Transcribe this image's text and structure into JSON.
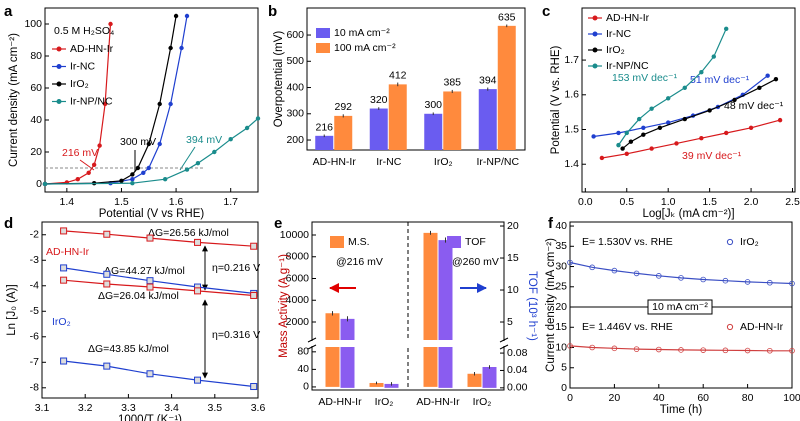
{
  "chart_data": [
    {
      "panel": "a",
      "type": "line",
      "x_label": "Potential (V vs RHE)",
      "y_label": "Current density (mA cm⁻²)",
      "xlim": [
        1.36,
        1.75
      ],
      "xticks": [
        1.4,
        1.5,
        1.6,
        1.7
      ],
      "ylim": [
        -5,
        110
      ],
      "yticks": [
        0,
        20,
        40,
        60,
        80,
        100
      ],
      "marker": "circle",
      "legend": "upper left",
      "reference_y": 10,
      "annotations": [
        "0.5 M H₂SO₄",
        "216 mV",
        "300 mV",
        "394 mV"
      ],
      "series": [
        {
          "name": "AD-HN-Ir",
          "color": "#d7191c",
          "x": [
            1.36,
            1.4,
            1.42,
            1.44,
            1.45,
            1.46,
            1.47,
            1.48
          ],
          "values": [
            0,
            1,
            3,
            7,
            12,
            24,
            50,
            100
          ]
        },
        {
          "name": "Ir-NC",
          "color": "#1f3fcf",
          "x": [
            1.36,
            1.48,
            1.52,
            1.54,
            1.55,
            1.57,
            1.59,
            1.61,
            1.62
          ],
          "values": [
            0,
            0.5,
            3,
            7,
            10,
            25,
            50,
            85,
            105
          ]
        },
        {
          "name": "IrO₂",
          "color": "#000000",
          "x": [
            1.36,
            1.45,
            1.5,
            1.52,
            1.53,
            1.55,
            1.57,
            1.59,
            1.6
          ],
          "values": [
            0,
            0.5,
            2,
            6,
            10,
            25,
            50,
            85,
            105
          ]
        },
        {
          "name": "Ir-NP/NC",
          "color": "#1a8c8c",
          "x": [
            1.36,
            1.52,
            1.58,
            1.62,
            1.64,
            1.67,
            1.7,
            1.73,
            1.75
          ],
          "values": [
            0,
            0.5,
            3,
            9,
            13,
            20,
            28,
            35,
            41
          ]
        }
      ]
    },
    {
      "panel": "b",
      "type": "bar",
      "y_label": "Overpotential (mV)",
      "categories": [
        "AD-HN-Ir",
        "Ir-NC",
        "IrO₂",
        "Ir-NP/NC"
      ],
      "ylim": [
        162,
        703
      ],
      "yticks": [
        200,
        300,
        400,
        500,
        600
      ],
      "legend": "upper left",
      "series": [
        {
          "name": "10 mA cm⁻²",
          "color": "#6a5cf0",
          "values": [
            216,
            320,
            300,
            394
          ],
          "errors": [
            5,
            5,
            5,
            6
          ]
        },
        {
          "name": "100 mA cm⁻²",
          "color": "#ff8a3d",
          "values": [
            292,
            412,
            385,
            635
          ],
          "errors": [
            6,
            7,
            6,
            5
          ]
        }
      ]
    },
    {
      "panel": "c",
      "type": "line",
      "x_label": "Log[Jₖ (mA cm⁻²)]",
      "y_label": "Potential (V vs. RHE)",
      "xlim": [
        -0.04,
        2.53
      ],
      "xticks": [
        {
          "value": 0,
          "label": "0.0"
        },
        0.5,
        {
          "value": 1,
          "label": "1.0"
        },
        1.5,
        {
          "value": 2,
          "label": "2.0"
        },
        2.5
      ],
      "ylim": [
        1.32,
        1.85
      ],
      "yticks": [
        1.4,
        1.5,
        1.6,
        1.7
      ],
      "marker": "circle",
      "legend": "upper left",
      "annotations": [
        "153 mV dec⁻¹",
        "51 mV dec⁻¹",
        "48 mV dec⁻¹",
        "39 mV dec⁻¹"
      ],
      "series": [
        {
          "name": "AD-HN-Ir",
          "color": "#d7191c",
          "x": [
            0.2,
            0.5,
            0.8,
            1.1,
            1.4,
            1.7,
            2.0,
            2.35
          ],
          "values": [
            1.418,
            1.43,
            1.445,
            1.46,
            1.475,
            1.49,
            1.505,
            1.527
          ]
        },
        {
          "name": "Ir-NC",
          "color": "#1f3fcf",
          "x": [
            0.1,
            0.4,
            0.7,
            1.0,
            1.3,
            1.6,
            1.9,
            2.2
          ],
          "values": [
            1.48,
            1.49,
            1.505,
            1.52,
            1.54,
            1.565,
            1.6,
            1.655
          ]
        },
        {
          "name": "IrO₂",
          "color": "#000000",
          "x": [
            0.45,
            0.55,
            0.7,
            0.9,
            1.2,
            1.5,
            1.8,
            2.1,
            2.3
          ],
          "values": [
            1.445,
            1.465,
            1.485,
            1.505,
            1.53,
            1.555,
            1.585,
            1.62,
            1.645
          ]
        },
        {
          "name": "Ir-NP/NC",
          "color": "#1a8c8c",
          "x": [
            0.4,
            0.5,
            0.65,
            0.8,
            1.0,
            1.2,
            1.4,
            1.55,
            1.7
          ],
          "values": [
            1.455,
            1.49,
            1.53,
            1.56,
            1.59,
            1.62,
            1.665,
            1.71,
            1.79
          ]
        }
      ]
    },
    {
      "panel": "d",
      "type": "line",
      "x_label": "1000/T (K⁻¹)",
      "y_label": "Ln [J₀ (A)]",
      "xlim": [
        3.1,
        3.6
      ],
      "xticks": [
        3.1,
        3.2,
        3.3,
        3.4,
        3.5,
        3.6
      ],
      "ylim": [
        -8.4,
        -1.5
      ],
      "yticks": [
        -2,
        -3,
        -4,
        -5,
        -6,
        -7,
        -8
      ],
      "marker": "square",
      "x": [
        3.15,
        3.25,
        3.35,
        3.46,
        3.59
      ],
      "annotations": [
        "AD-HN-Ir",
        "IrO₂",
        "ΔG=26.56 kJ/mol",
        "ΔG=44.27 kJ/mol",
        "ΔG=26.04 kJ/mol",
        "η=0.216 V",
        "η=0.316 V",
        "ΔG=43.85 kJ/mol"
      ],
      "series": [
        {
          "color": "#d7191c",
          "values": [
            -1.85,
            -1.98,
            -2.13,
            -2.3,
            -2.45
          ]
        },
        {
          "color": "#1f3fcf",
          "values": [
            -3.3,
            -3.55,
            -3.8,
            -4.05,
            -4.3
          ]
        },
        {
          "color": "#d7191c",
          "values": [
            -3.78,
            -3.93,
            -4.05,
            -4.2,
            -4.38
          ]
        },
        {
          "color": "#1f3fcf",
          "values": [
            -6.95,
            -7.15,
            -7.45,
            -7.7,
            -7.95
          ]
        }
      ]
    },
    {
      "panel": "e",
      "type": "bar",
      "y_label": "Mass Activity (A g⁻¹)",
      "y2_label": "TOF (10³ h⁻¹)",
      "categories": [
        "AD-HN-Ir",
        "IrO₂",
        "AD-HN-Ir",
        "IrO₂"
      ],
      "group_labels": [
        "@216 mV",
        "@260 mV"
      ],
      "ylim_lower": [
        -7,
        91
      ],
      "ylim_upper": [
        345,
        10920
      ],
      "yticks": [
        0,
        40,
        80,
        2000,
        4000,
        6000,
        8000,
        10000
      ],
      "y2lim_lower": [
        -0.005,
        0.094
      ],
      "y2lim_upper": [
        2.19,
        20.16
      ],
      "y2ticks": [
        {
          "value": 0,
          "label": "0.00"
        },
        {
          "value": 0.04,
          "label": "0.04"
        },
        {
          "value": 0.08,
          "label": "0.08"
        },
        5,
        10,
        15,
        20
      ],
      "series": [
        {
          "name": "M.S.",
          "color": "#ff8a3d",
          "values": [
            2800,
            9,
            10200,
            30
          ],
          "errors": [
            200,
            3,
            180,
            4
          ]
        },
        {
          "name": "TOF",
          "color": "#8a5cf0",
          "axis": "y2",
          "values": [
            5.5,
            0.009,
            17.8,
            0.048
          ],
          "errors": [
            0.4,
            0.004,
            0.4,
            0.004
          ]
        }
      ]
    },
    {
      "panel": "f",
      "type": "line",
      "x_label": "Time (h)",
      "y_label": "Current density (mA cm⁻²)",
      "xlim": [
        0,
        100
      ],
      "xticks": [
        0,
        20,
        40,
        60,
        80,
        100
      ],
      "ylim": [
        0,
        41
      ],
      "yticks": [
        0,
        5,
        10,
        15,
        20,
        25,
        30,
        35,
        40
      ],
      "marker": "open-circle",
      "x": [
        0,
        10,
        20,
        30,
        40,
        50,
        60,
        70,
        80,
        90,
        100
      ],
      "annotations": [
        "E= 1.530V vs. RHE",
        "10 mA cm⁻²",
        "E= 1.446V vs. RHE"
      ],
      "series": [
        {
          "name": "IrO₂",
          "color": "#3b4fc4",
          "values": [
            31.0,
            29.8,
            29.0,
            28.3,
            27.7,
            27.2,
            26.8,
            26.5,
            26.2,
            26.0,
            25.8
          ]
        },
        {
          "name": "AD-HN-Ir",
          "color": "#d04040",
          "values": [
            10.4,
            10.0,
            9.8,
            9.6,
            9.5,
            9.4,
            9.35,
            9.3,
            9.25,
            9.2,
            9.2
          ]
        }
      ]
    }
  ]
}
